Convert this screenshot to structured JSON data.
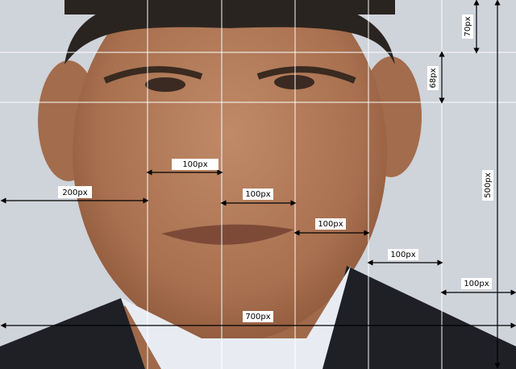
{
  "annotations": [
    {
      "label": "100px"
    },
    {
      "label": "200px"
    },
    {
      "label": "100px"
    },
    {
      "label": "100px"
    },
    {
      "label": "100px"
    },
    {
      "label": "100px"
    },
    {
      "label": "700px"
    },
    {
      "label": "70px"
    },
    {
      "label": "68px"
    },
    {
      "label": "500px"
    }
  ]
}
